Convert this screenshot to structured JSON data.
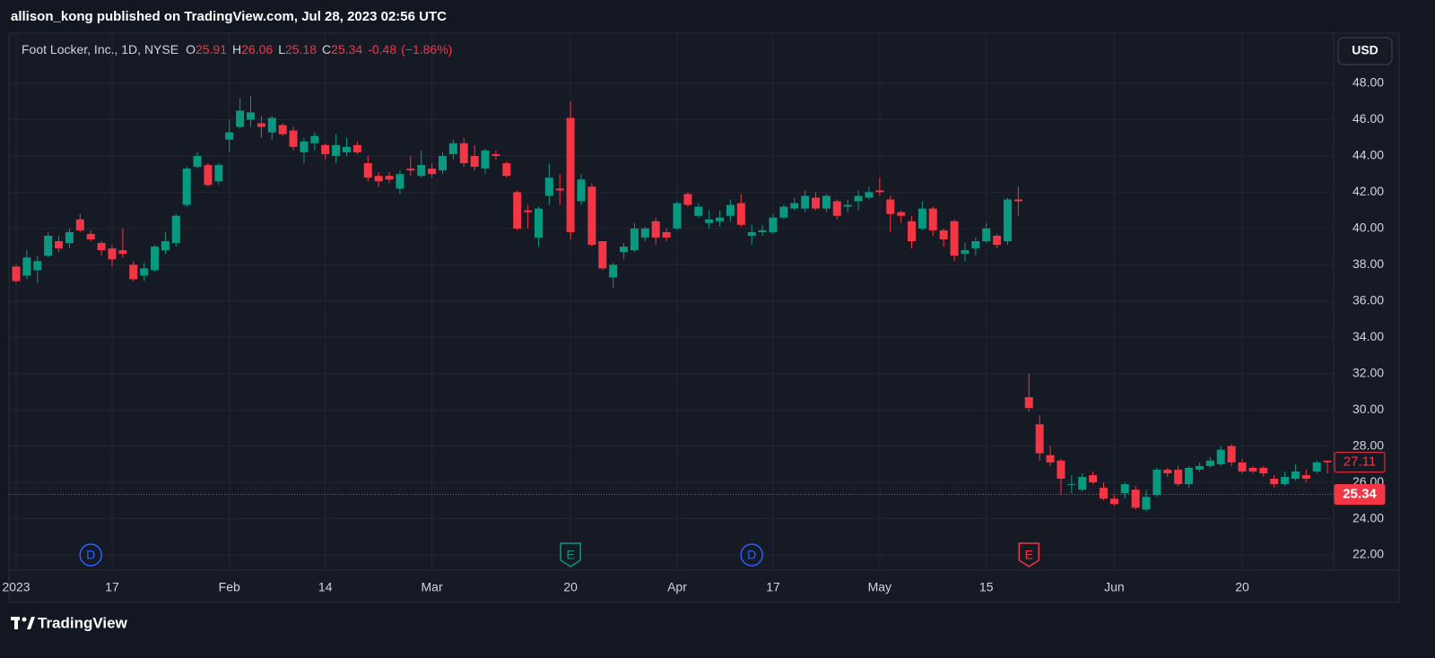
{
  "header": {
    "text": "allison_kong published on TradingView.com, Jul 28, 2023 02:56 UTC"
  },
  "footer": {
    "brand": "TradingView"
  },
  "chart_data": {
    "type": "candlestick",
    "title": "Foot Locker, Inc., 1D, NYSE",
    "ohlc_legend": [
      {
        "key": "O",
        "value": 25.91
      },
      {
        "key": "H",
        "value": 26.06
      },
      {
        "key": "L",
        "value": 25.18
      },
      {
        "key": "C",
        "value": 25.34
      }
    ],
    "change": -0.48,
    "change_percent": {
      "value": -1.86,
      "label": "(−1.86%)"
    },
    "currency": "USD",
    "up_color": "#089981",
    "down_color": "#f23645",
    "categories": [
      "2023",
      null,
      null,
      null,
      null,
      null,
      null,
      null,
      null,
      "17",
      null,
      null,
      null,
      null,
      null,
      null,
      null,
      null,
      null,
      null,
      "Feb",
      null,
      null,
      null,
      null,
      null,
      null,
      null,
      null,
      "14",
      null,
      null,
      null,
      null,
      null,
      null,
      null,
      null,
      null,
      "Mar",
      null,
      null,
      null,
      null,
      null,
      null,
      null,
      null,
      null,
      null,
      null,
      null,
      "20",
      null,
      null,
      null,
      null,
      null,
      null,
      null,
      null,
      null,
      "Apr",
      null,
      null,
      null,
      null,
      null,
      null,
      null,
      null,
      "17",
      null,
      null,
      null,
      null,
      null,
      null,
      null,
      null,
      null,
      "May",
      null,
      null,
      null,
      null,
      null,
      null,
      null,
      null,
      null,
      "15",
      null,
      null,
      null,
      null,
      null,
      null,
      null,
      null,
      null,
      null,
      null,
      "Jun",
      null,
      null,
      null,
      null,
      null,
      null,
      null,
      null,
      null,
      null,
      null,
      "20",
      null,
      null,
      null,
      null,
      null,
      null,
      null,
      null
    ],
    "open": [
      37.9,
      37.4,
      37.7,
      38.5,
      39.3,
      39.2,
      40.5,
      39.7,
      39.2,
      38.9,
      38.8,
      38.0,
      37.4,
      37.7,
      38.8,
      39.2,
      41.3,
      43.4,
      43.5,
      42.6,
      44.9,
      45.6,
      46.0,
      45.8,
      45.3,
      45.7,
      45.4,
      44.2,
      44.7,
      44.6,
      44.0,
      44.2,
      44.6,
      43.6,
      42.9,
      42.9,
      42.2,
      43.3,
      42.9,
      43.3,
      43.2,
      44.1,
      44.7,
      44.0,
      43.3,
      44.1,
      43.6,
      42.0,
      41.0,
      39.5,
      41.8,
      42.2,
      46.1,
      41.5,
      42.3,
      39.3,
      37.3,
      38.7,
      38.8,
      39.5,
      40.4,
      39.8,
      40.0,
      41.9,
      40.7,
      40.3,
      40.4,
      40.7,
      41.4,
      39.6,
      39.8,
      39.8,
      40.6,
      41.1,
      41.1,
      41.7,
      41.1,
      41.5,
      41.2,
      41.5,
      41.7,
      42.1,
      41.6,
      40.9,
      40.4,
      40.0,
      41.1,
      39.9,
      40.4,
      38.6,
      38.9,
      39.3,
      39.6,
      39.3,
      41.6,
      30.7,
      29.2,
      27.5,
      27.2,
      25.9,
      25.6,
      26.4,
      25.7,
      25.1,
      25.4,
      25.6,
      24.5,
      25.3,
      26.7,
      26.7,
      25.9,
      26.7,
      26.9,
      27.0,
      28.0,
      27.1,
      26.8,
      26.8,
      26.2,
      25.9,
      26.2,
      26.4,
      26.6,
      27.2
    ],
    "high": [
      38.0,
      38.8,
      38.5,
      39.8,
      39.6,
      40.0,
      40.8,
      39.9,
      39.3,
      39.1,
      40.0,
      38.2,
      38.1,
      39.1,
      39.8,
      40.8,
      43.4,
      44.2,
      43.6,
      43.6,
      46.0,
      47.2,
      47.3,
      46.2,
      46.2,
      45.8,
      45.6,
      45.0,
      45.3,
      44.7,
      45.2,
      45.0,
      44.8,
      44.0,
      43.1,
      43.1,
      43.2,
      44.0,
      44.3,
      43.6,
      44.2,
      44.9,
      45.0,
      44.6,
      44.4,
      44.3,
      43.7,
      42.1,
      41.3,
      41.2,
      43.6,
      43.0,
      47.0,
      43.0,
      42.5,
      39.3,
      38.1,
      39.2,
      40.3,
      40.1,
      40.6,
      40.0,
      41.5,
      42.0,
      41.4,
      41.0,
      41.0,
      41.6,
      41.9,
      40.2,
      40.2,
      40.8,
      41.3,
      41.7,
      42.1,
      42.0,
      41.9,
      41.6,
      41.6,
      42.1,
      42.3,
      42.8,
      41.8,
      41.0,
      40.7,
      41.5,
      41.2,
      40.0,
      40.5,
      39.2,
      39.5,
      40.3,
      39.7,
      41.7,
      42.3,
      32.0,
      29.7,
      28.0,
      27.3,
      26.4,
      26.5,
      26.6,
      26.0,
      25.3,
      26.0,
      25.8,
      25.6,
      26.8,
      26.8,
      26.9,
      26.9,
      27.1,
      27.4,
      28.0,
      28.1,
      27.3,
      26.9,
      26.9,
      26.4,
      26.6,
      27.0,
      26.7,
      27.2,
      27.2
    ],
    "low": [
      37.0,
      37.2,
      37.0,
      38.4,
      38.7,
      38.9,
      39.8,
      39.3,
      38.5,
      37.9,
      38.4,
      37.1,
      37.1,
      37.6,
      38.6,
      39.0,
      41.2,
      43.3,
      42.3,
      42.4,
      44.2,
      45.5,
      45.6,
      45.0,
      44.9,
      45.1,
      44.3,
      43.6,
      44.3,
      43.8,
      43.6,
      44.0,
      44.1,
      42.6,
      42.3,
      42.5,
      41.9,
      42.9,
      42.8,
      42.8,
      43.0,
      43.8,
      43.4,
      43.2,
      43.0,
      43.8,
      42.8,
      39.9,
      40.0,
      39.0,
      41.3,
      41.3,
      39.4,
      41.3,
      39.0,
      37.7,
      36.7,
      38.3,
      38.7,
      39.3,
      39.1,
      39.3,
      39.9,
      41.2,
      40.6,
      40.0,
      40.1,
      40.4,
      40.1,
      39.1,
      39.6,
      39.7,
      40.5,
      41.0,
      40.9,
      41.0,
      40.9,
      40.5,
      40.9,
      41.0,
      41.6,
      41.8,
      39.8,
      40.3,
      38.9,
      39.9,
      39.6,
      39.0,
      38.2,
      38.2,
      38.5,
      39.2,
      38.9,
      39.1,
      40.7,
      29.9,
      27.2,
      26.9,
      25.3,
      25.4,
      25.5,
      25.9,
      25.0,
      24.7,
      25.1,
      24.5,
      24.4,
      25.2,
      26.3,
      25.8,
      25.7,
      26.6,
      26.8,
      26.9,
      26.9,
      26.5,
      26.5,
      26.3,
      25.7,
      25.8,
      26.1,
      26.0,
      26.5,
      26.5
    ],
    "close": [
      37.1,
      38.4,
      38.2,
      39.6,
      38.9,
      39.8,
      39.9,
      39.4,
      38.8,
      38.3,
      38.6,
      37.2,
      37.8,
      39.0,
      39.3,
      40.7,
      43.3,
      44.0,
      42.4,
      43.5,
      45.3,
      46.5,
      46.4,
      45.6,
      46.1,
      45.2,
      44.5,
      44.8,
      45.1,
      44.1,
      44.6,
      44.5,
      44.2,
      42.8,
      42.6,
      42.7,
      43.0,
      43.2,
      43.5,
      43.0,
      44.0,
      44.7,
      43.6,
      43.4,
      44.3,
      44.0,
      42.9,
      40.0,
      40.9,
      41.1,
      42.8,
      42.1,
      39.8,
      42.7,
      39.1,
      37.8,
      38.0,
      39.0,
      40.0,
      40.0,
      39.5,
      39.5,
      41.4,
      41.3,
      41.2,
      40.5,
      40.6,
      41.3,
      40.2,
      39.8,
      39.9,
      40.6,
      41.2,
      41.4,
      41.8,
      41.1,
      41.8,
      40.7,
      41.3,
      41.8,
      42.0,
      42.0,
      40.8,
      40.7,
      39.3,
      41.1,
      39.9,
      39.4,
      38.5,
      38.8,
      39.3,
      40.0,
      39.1,
      41.6,
      41.5,
      30.1,
      27.6,
      27.1,
      26.2,
      25.9,
      26.3,
      26.0,
      25.1,
      24.8,
      25.9,
      24.6,
      25.2,
      26.7,
      26.5,
      25.9,
      26.8,
      26.9,
      27.2,
      27.8,
      27.1,
      26.6,
      26.6,
      26.5,
      25.9,
      26.3,
      26.6,
      26.2,
      27.1,
      27.11
    ],
    "ylim": [
      21.16,
      50.77
    ],
    "yticks": [
      {
        "value": 22,
        "label": "22.00"
      },
      {
        "value": 24,
        "label": "24.00"
      },
      {
        "value": 26,
        "label": "26.00"
      },
      {
        "value": 28,
        "label": "28.00"
      },
      {
        "value": 30,
        "label": "30.00"
      },
      {
        "value": 32,
        "label": "32.00"
      },
      {
        "value": 34,
        "label": "34.00"
      },
      {
        "value": 36,
        "label": "36.00"
      },
      {
        "value": 38,
        "label": "38.00"
      },
      {
        "value": 40,
        "label": "40.00"
      },
      {
        "value": 42,
        "label": "42.00"
      },
      {
        "value": 44,
        "label": "44.00"
      },
      {
        "value": 46,
        "label": "46.00"
      },
      {
        "value": 48,
        "label": "48.00"
      }
    ],
    "price_labels": [
      {
        "value": 27.11,
        "label": "27.11",
        "style": "outline"
      },
      {
        "value": 25.34,
        "label": "25.34",
        "style": "filled"
      }
    ],
    "events": [
      {
        "index": 7,
        "label": "D",
        "color": "#2962ff",
        "shape": "circle"
      },
      {
        "index": 52,
        "label": "E",
        "color": "#089981",
        "shape": "flag"
      },
      {
        "index": 69,
        "label": "D",
        "color": "#2962ff",
        "shape": "circle"
      },
      {
        "index": 95,
        "label": "E",
        "color": "#f23645",
        "shape": "flag"
      }
    ],
    "grid": true
  }
}
